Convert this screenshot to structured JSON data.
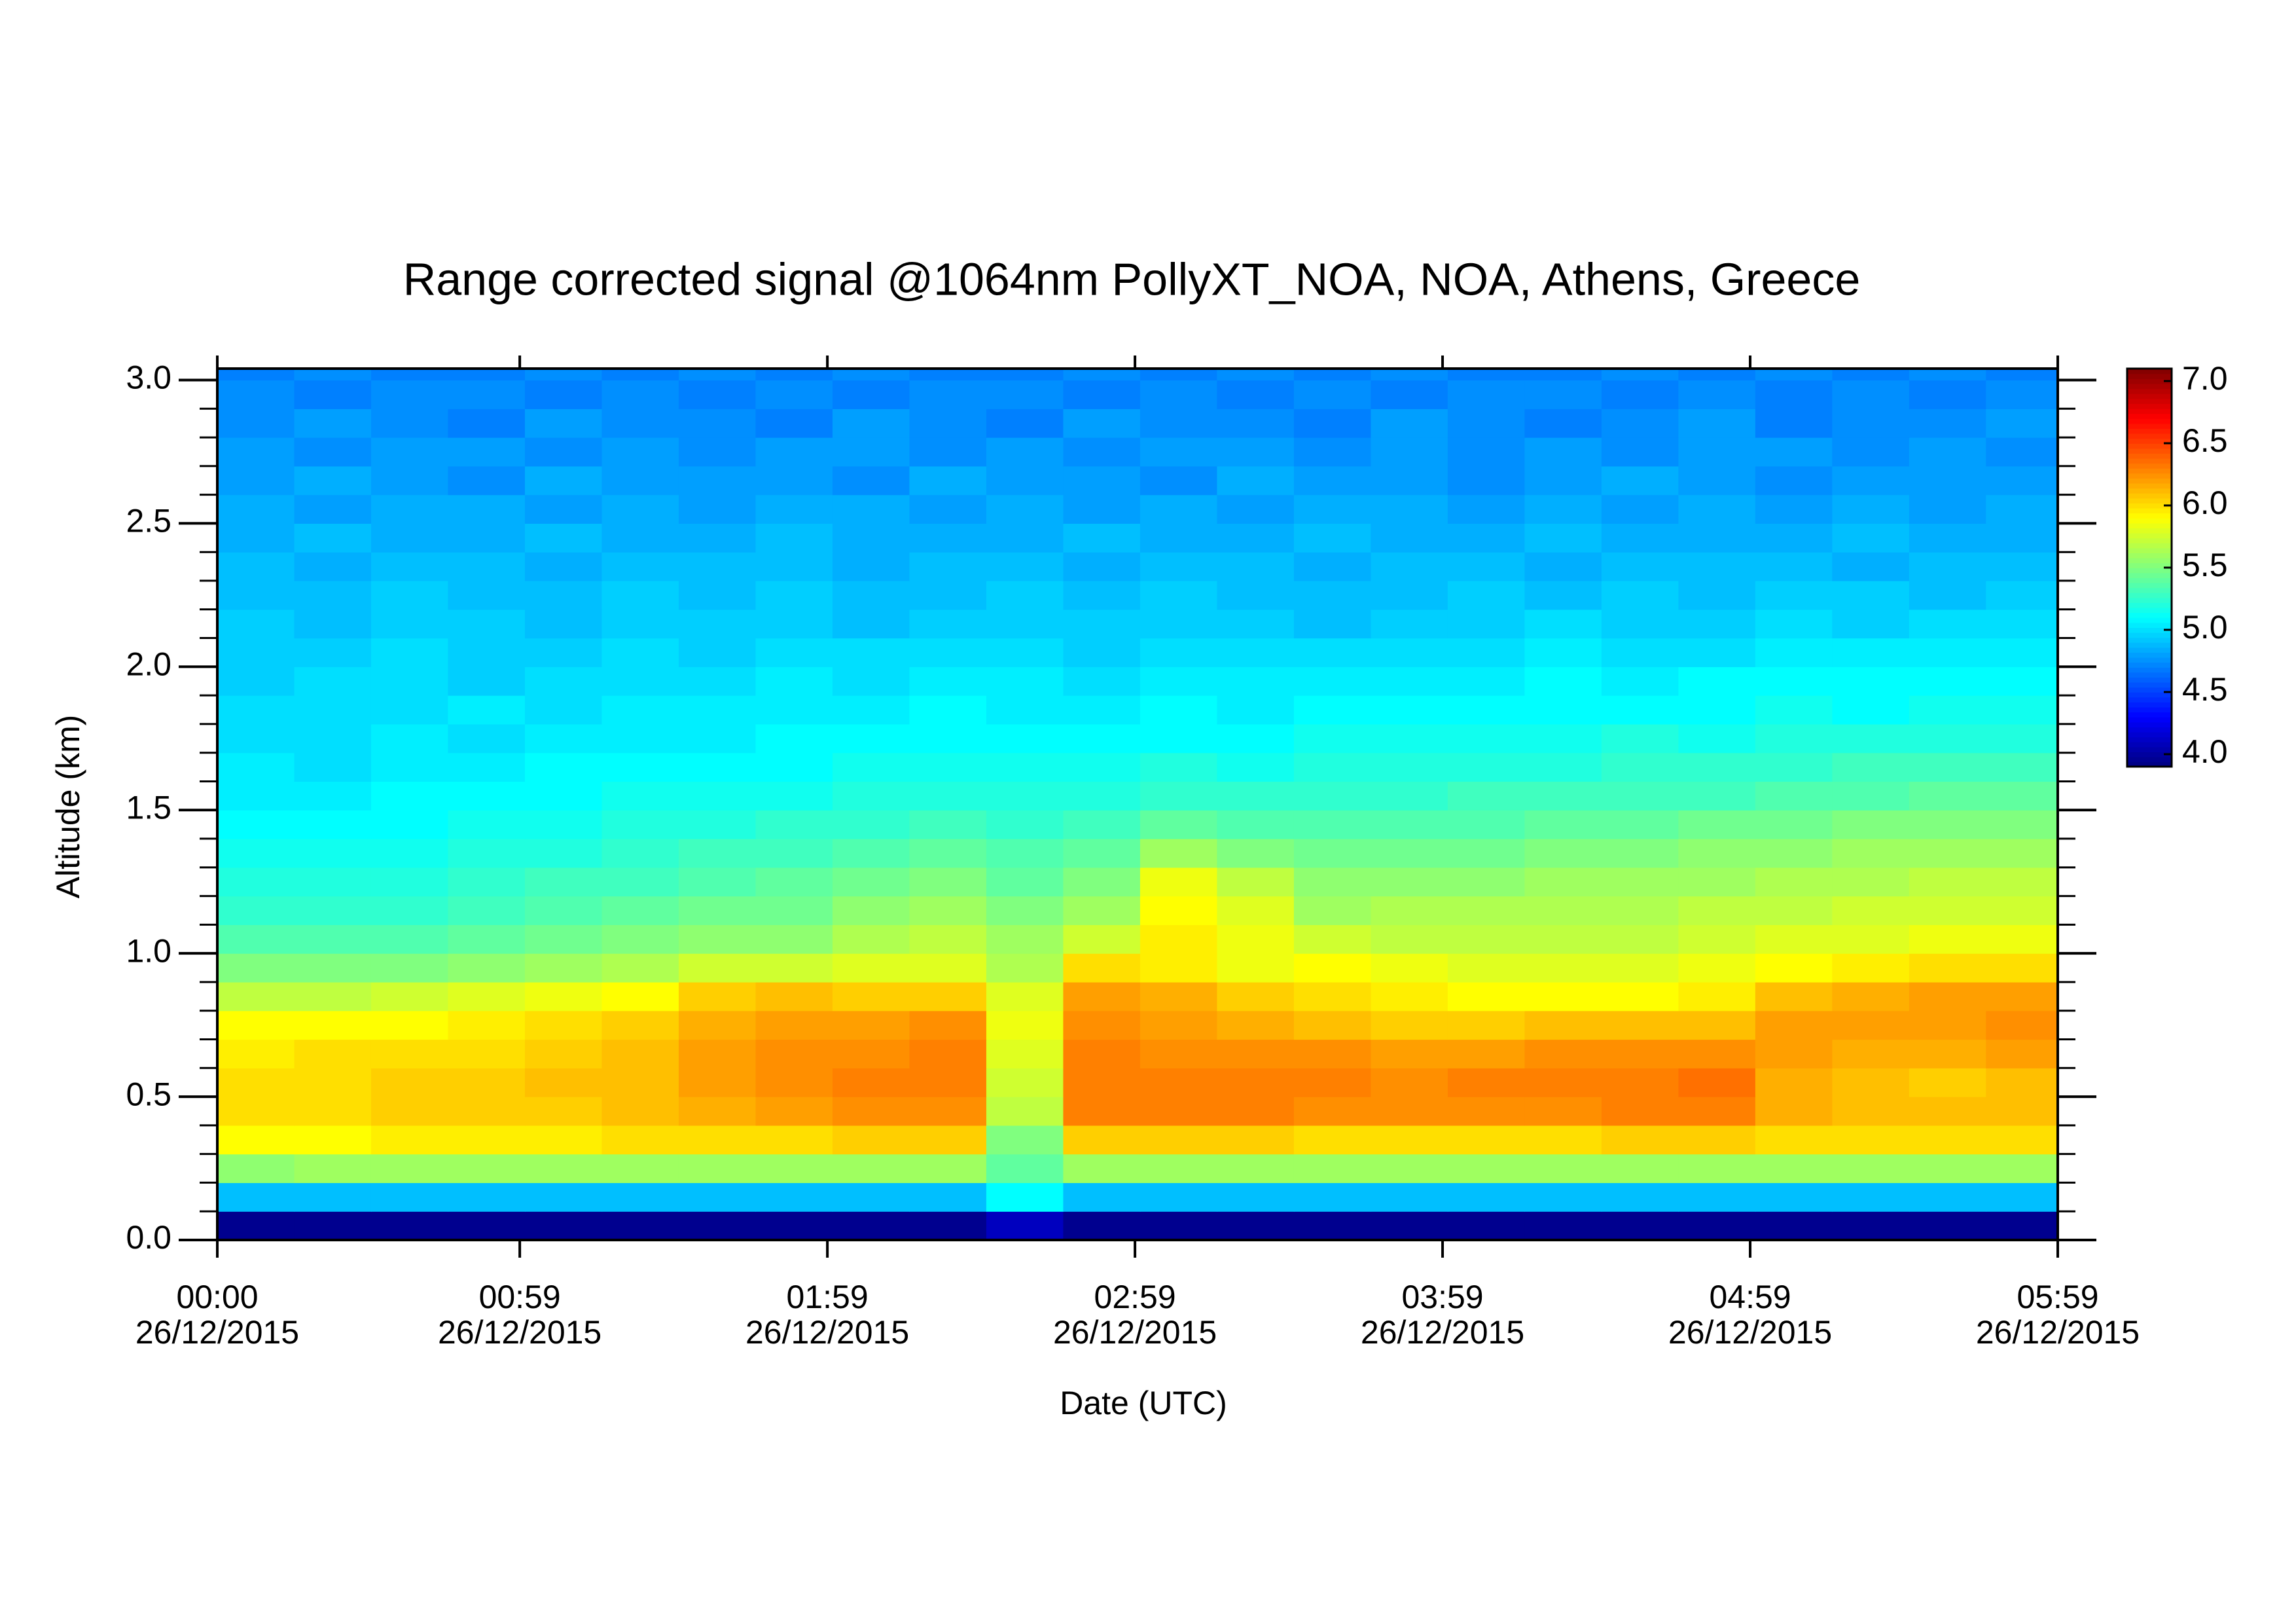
{
  "chart_data": {
    "type": "heatmap",
    "title": "Range corrected signal @1064nm  PollyXT_NOA, NOA, Athens, Greece",
    "x_label": "Date (UTC)",
    "y_label": "Altitude (km)",
    "xlim": [
      0,
      359
    ],
    "xticks": [
      {
        "value": 0,
        "label": "00:00\n26/12/2015"
      },
      {
        "value": 59,
        "label": "00:59\n26/12/2015"
      },
      {
        "value": 119,
        "label": "01:59\n26/12/2015"
      },
      {
        "value": 179,
        "label": "02:59\n26/12/2015"
      },
      {
        "value": 239,
        "label": "03:59\n26/12/2015"
      },
      {
        "value": 299,
        "label": "04:59\n26/12/2015"
      },
      {
        "value": 359,
        "label": "05:59\n26/12/2015"
      }
    ],
    "ylim": [
      0,
      3.04
    ],
    "yticks": [
      {
        "value": 0,
        "label": "0.0"
      },
      0.5,
      {
        "value": 1,
        "label": "1.0"
      },
      1.5,
      {
        "value": 2,
        "label": "2.0"
      },
      2.5,
      {
        "value": 3,
        "label": "3.0"
      }
    ],
    "yminorticks": [
      0.1,
      0.2,
      0.3,
      0.4,
      0.6,
      0.7,
      0.8,
      0.9,
      1.1,
      1.2,
      1.3,
      1.4,
      1.6,
      1.7,
      1.8,
      1.9,
      2.1,
      2.2,
      2.3,
      2.4,
      2.6,
      2.7,
      2.8,
      2.9
    ],
    "zlim": [
      3.9,
      7.1
    ],
    "cticks": [
      {
        "value": 4,
        "label": "4.0"
      },
      4.5,
      {
        "value": 5,
        "label": "5.0"
      },
      5.5,
      {
        "value": 6,
        "label": "6.0"
      },
      6.5,
      {
        "value": 7,
        "label": "7.0"
      }
    ],
    "colormap": "jet",
    "x": [
      7.5,
      22.5,
      37.5,
      52.5,
      67.5,
      82.5,
      97.5,
      112.5,
      127.5,
      142.5,
      157.5,
      172.5,
      187.5,
      202.5,
      217.5,
      232.5,
      247.5,
      262.5,
      277.5,
      292.5,
      307.5,
      322.5,
      337.5,
      352.5
    ],
    "y": [
      0.05,
      0.15,
      0.25,
      0.35,
      0.45,
      0.55,
      0.65,
      0.75,
      0.85,
      0.95,
      1.05,
      1.15,
      1.25,
      1.35,
      1.45,
      1.55,
      1.65,
      1.75,
      1.85,
      1.95,
      2.05,
      2.15,
      2.25,
      2.35,
      2.45,
      2.55,
      2.65,
      2.75,
      2.85,
      2.95,
      3.05
    ],
    "z": [
      [
        3.95,
        3.95,
        3.95,
        3.95,
        3.95,
        3.95,
        3.95,
        3.95,
        3.95,
        3.95,
        4.1,
        3.95,
        3.95,
        3.95,
        3.95,
        3.95,
        3.95,
        3.95,
        3.95,
        3.95,
        3.95,
        3.95,
        3.95,
        3.95
      ],
      [
        4.9,
        4.9,
        4.9,
        4.9,
        4.9,
        4.9,
        4.9,
        4.9,
        4.9,
        4.9,
        5.1,
        4.9,
        4.9,
        4.9,
        4.9,
        4.9,
        4.9,
        4.9,
        4.9,
        4.9,
        4.9,
        4.9,
        4.9,
        4.9
      ],
      [
        5.55,
        5.6,
        5.6,
        5.6,
        5.6,
        5.6,
        5.6,
        5.6,
        5.6,
        5.6,
        5.4,
        5.6,
        5.6,
        5.6,
        5.6,
        5.6,
        5.6,
        5.6,
        5.6,
        5.6,
        5.6,
        5.6,
        5.6,
        5.6
      ],
      [
        5.9,
        5.9,
        5.95,
        5.95,
        5.95,
        6.0,
        6.0,
        6.0,
        6.05,
        6.05,
        5.5,
        6.05,
        6.05,
        6.05,
        6.0,
        6.0,
        6.0,
        6.0,
        6.05,
        6.05,
        6.0,
        6.0,
        6.0,
        6.0
      ],
      [
        6.0,
        6.0,
        6.05,
        6.05,
        6.05,
        6.1,
        6.15,
        6.2,
        6.25,
        6.25,
        5.7,
        6.3,
        6.3,
        6.3,
        6.25,
        6.25,
        6.25,
        6.25,
        6.3,
        6.3,
        6.15,
        6.1,
        6.1,
        6.1
      ],
      [
        6.0,
        6.0,
        6.05,
        6.05,
        6.1,
        6.1,
        6.2,
        6.25,
        6.3,
        6.3,
        5.75,
        6.3,
        6.3,
        6.3,
        6.3,
        6.25,
        6.3,
        6.3,
        6.3,
        6.35,
        6.15,
        6.1,
        6.05,
        6.1
      ],
      [
        5.95,
        6.0,
        6.0,
        6.0,
        6.05,
        6.1,
        6.2,
        6.25,
        6.25,
        6.3,
        5.8,
        6.3,
        6.25,
        6.25,
        6.25,
        6.2,
        6.2,
        6.25,
        6.25,
        6.25,
        6.2,
        6.15,
        6.15,
        6.2
      ],
      [
        5.9,
        5.9,
        5.9,
        5.95,
        6.0,
        6.05,
        6.15,
        6.2,
        6.2,
        6.25,
        5.85,
        6.25,
        6.2,
        6.15,
        6.1,
        6.05,
        6.05,
        6.1,
        6.1,
        6.1,
        6.2,
        6.2,
        6.2,
        6.25
      ],
      [
        5.7,
        5.7,
        5.75,
        5.8,
        5.85,
        5.9,
        6.05,
        6.1,
        6.05,
        6.05,
        5.8,
        6.2,
        6.15,
        6.05,
        6.0,
        5.95,
        5.9,
        5.9,
        5.9,
        5.95,
        6.1,
        6.15,
        6.2,
        6.2
      ],
      [
        5.5,
        5.5,
        5.5,
        5.55,
        5.6,
        5.65,
        5.75,
        5.75,
        5.8,
        5.8,
        5.65,
        6.0,
        5.95,
        5.85,
        5.9,
        5.85,
        5.8,
        5.8,
        5.8,
        5.85,
        5.9,
        5.95,
        6.0,
        6.0
      ],
      [
        5.35,
        5.35,
        5.35,
        5.4,
        5.45,
        5.5,
        5.55,
        5.55,
        5.65,
        5.7,
        5.6,
        5.75,
        5.95,
        5.85,
        5.75,
        5.7,
        5.7,
        5.7,
        5.7,
        5.75,
        5.8,
        5.8,
        5.85,
        5.85
      ],
      [
        5.25,
        5.25,
        5.25,
        5.3,
        5.35,
        5.4,
        5.45,
        5.45,
        5.55,
        5.6,
        5.5,
        5.6,
        5.9,
        5.8,
        5.6,
        5.65,
        5.65,
        5.65,
        5.65,
        5.7,
        5.7,
        5.75,
        5.75,
        5.75
      ],
      [
        5.2,
        5.2,
        5.2,
        5.25,
        5.3,
        5.3,
        5.35,
        5.4,
        5.45,
        5.5,
        5.4,
        5.5,
        5.85,
        5.7,
        5.55,
        5.55,
        5.55,
        5.6,
        5.6,
        5.6,
        5.65,
        5.65,
        5.7,
        5.7
      ],
      [
        5.15,
        5.15,
        5.15,
        5.2,
        5.2,
        5.25,
        5.3,
        5.3,
        5.35,
        5.4,
        5.35,
        5.4,
        5.6,
        5.5,
        5.45,
        5.45,
        5.45,
        5.5,
        5.5,
        5.55,
        5.55,
        5.6,
        5.6,
        5.6
      ],
      [
        5.1,
        5.1,
        5.1,
        5.15,
        5.15,
        5.2,
        5.2,
        5.25,
        5.25,
        5.3,
        5.25,
        5.3,
        5.4,
        5.35,
        5.35,
        5.35,
        5.35,
        5.4,
        5.4,
        5.45,
        5.45,
        5.5,
        5.5,
        5.5
      ],
      [
        5.05,
        5.05,
        5.1,
        5.1,
        5.1,
        5.15,
        5.15,
        5.15,
        5.2,
        5.2,
        5.2,
        5.2,
        5.25,
        5.25,
        5.25,
        5.25,
        5.3,
        5.3,
        5.3,
        5.3,
        5.35,
        5.35,
        5.4,
        5.4
      ],
      [
        5.05,
        5.0,
        5.05,
        5.05,
        5.1,
        5.1,
        5.1,
        5.1,
        5.15,
        5.15,
        5.15,
        5.15,
        5.2,
        5.15,
        5.2,
        5.2,
        5.2,
        5.2,
        5.25,
        5.25,
        5.25,
        5.3,
        5.3,
        5.3
      ],
      [
        5.0,
        5.0,
        5.05,
        5.0,
        5.05,
        5.05,
        5.05,
        5.1,
        5.1,
        5.1,
        5.1,
        5.1,
        5.1,
        5.1,
        5.15,
        5.15,
        5.15,
        5.15,
        5.2,
        5.15,
        5.2,
        5.2,
        5.2,
        5.2
      ],
      [
        5.0,
        5.0,
        5.0,
        5.05,
        5.0,
        5.05,
        5.05,
        5.05,
        5.05,
        5.1,
        5.05,
        5.05,
        5.1,
        5.05,
        5.1,
        5.1,
        5.1,
        5.1,
        5.1,
        5.1,
        5.15,
        5.1,
        5.15,
        5.15
      ],
      [
        4.95,
        5.0,
        5.0,
        4.95,
        5.0,
        5.0,
        5.0,
        5.05,
        5.0,
        5.05,
        5.05,
        5.0,
        5.05,
        5.05,
        5.05,
        5.05,
        5.05,
        5.1,
        5.05,
        5.1,
        5.1,
        5.1,
        5.1,
        5.1
      ],
      [
        4.95,
        4.95,
        5.0,
        4.95,
        4.95,
        5.0,
        4.95,
        5.0,
        5.0,
        5.0,
        5.0,
        4.95,
        5.0,
        5.0,
        5.0,
        5.0,
        5.0,
        5.05,
        5.0,
        5.0,
        5.05,
        5.05,
        5.05,
        5.05
      ],
      [
        4.95,
        4.9,
        4.95,
        4.95,
        4.9,
        4.95,
        4.95,
        4.95,
        4.9,
        4.95,
        4.95,
        4.95,
        4.95,
        4.95,
        4.9,
        4.95,
        4.95,
        5.0,
        4.95,
        4.95,
        5.0,
        4.95,
        5.0,
        5.0
      ],
      [
        4.9,
        4.9,
        4.95,
        4.9,
        4.9,
        4.95,
        4.9,
        4.95,
        4.9,
        4.9,
        4.95,
        4.9,
        4.95,
        4.9,
        4.9,
        4.9,
        4.95,
        4.9,
        4.95,
        4.9,
        4.95,
        4.95,
        4.9,
        4.95
      ],
      [
        4.9,
        4.85,
        4.9,
        4.9,
        4.85,
        4.9,
        4.9,
        4.9,
        4.85,
        4.9,
        4.9,
        4.85,
        4.9,
        4.9,
        4.85,
        4.9,
        4.9,
        4.85,
        4.9,
        4.9,
        4.9,
        4.85,
        4.9,
        4.9
      ],
      [
        4.85,
        4.9,
        4.85,
        4.85,
        4.9,
        4.85,
        4.85,
        4.9,
        4.85,
        4.85,
        4.85,
        4.9,
        4.85,
        4.85,
        4.9,
        4.85,
        4.85,
        4.9,
        4.85,
        4.85,
        4.85,
        4.9,
        4.85,
        4.85
      ],
      [
        4.85,
        4.8,
        4.85,
        4.85,
        4.8,
        4.85,
        4.8,
        4.85,
        4.85,
        4.8,
        4.85,
        4.8,
        4.85,
        4.8,
        4.85,
        4.85,
        4.8,
        4.85,
        4.8,
        4.85,
        4.8,
        4.85,
        4.8,
        4.85
      ],
      [
        4.8,
        4.85,
        4.8,
        4.75,
        4.85,
        4.8,
        4.8,
        4.8,
        4.75,
        4.85,
        4.8,
        4.8,
        4.75,
        4.85,
        4.8,
        4.8,
        4.75,
        4.8,
        4.85,
        4.8,
        4.75,
        4.8,
        4.8,
        4.8
      ],
      [
        4.8,
        4.75,
        4.8,
        4.8,
        4.75,
        4.8,
        4.75,
        4.8,
        4.8,
        4.75,
        4.8,
        4.75,
        4.8,
        4.8,
        4.75,
        4.8,
        4.75,
        4.8,
        4.75,
        4.8,
        4.8,
        4.75,
        4.8,
        4.75
      ],
      [
        4.75,
        4.8,
        4.75,
        4.7,
        4.8,
        4.75,
        4.75,
        4.7,
        4.8,
        4.75,
        4.7,
        4.8,
        4.75,
        4.75,
        4.7,
        4.8,
        4.75,
        4.7,
        4.75,
        4.8,
        4.7,
        4.75,
        4.75,
        4.8
      ],
      [
        4.75,
        4.7,
        4.75,
        4.75,
        4.7,
        4.75,
        4.7,
        4.75,
        4.7,
        4.75,
        4.75,
        4.7,
        4.75,
        4.7,
        4.75,
        4.7,
        4.75,
        4.75,
        4.7,
        4.75,
        4.7,
        4.75,
        4.7,
        4.75
      ],
      [
        4.7,
        4.75,
        4.7,
        4.7,
        4.75,
        4.7,
        4.75,
        4.7,
        4.75,
        4.7,
        4.7,
        4.75,
        4.7,
        4.75,
        4.7,
        4.75,
        4.7,
        4.7,
        4.75,
        4.7,
        4.75,
        4.7,
        4.75,
        4.7
      ]
    ]
  }
}
